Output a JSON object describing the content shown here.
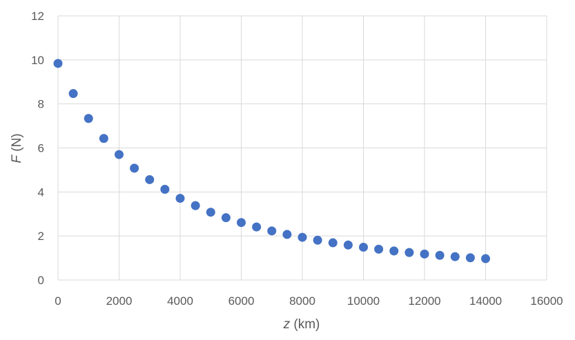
{
  "chart_data": {
    "type": "scatter",
    "title": "",
    "xlabel_var": "z",
    "xlabel_unit": " (km)",
    "ylabel_var": "F",
    "ylabel_unit": " (N)",
    "xlim": [
      0,
      16000
    ],
    "ylim": [
      0,
      12
    ],
    "xticks": [
      "0",
      "2000",
      "4000",
      "6000",
      "8000",
      "10000",
      "12000",
      "14000",
      "16000"
    ],
    "yticks": [
      "0",
      "2",
      "4",
      "6",
      "8",
      "10",
      "12"
    ],
    "grid": true,
    "legend": "none",
    "marker_color": "#4472c4",
    "series": [
      {
        "x": [
          0,
          500,
          1000,
          1500,
          2000,
          2500,
          3000,
          3500,
          4000,
          4500,
          5000,
          5500,
          6000,
          6500,
          7000,
          7500,
          8000,
          8500,
          9000,
          9500,
          10000,
          10500,
          11000,
          11500,
          12000,
          12500,
          13000,
          13500,
          14000
        ],
        "y": [
          9.84,
          8.47,
          7.34,
          6.43,
          5.7,
          5.08,
          4.56,
          4.12,
          3.71,
          3.38,
          3.08,
          2.83,
          2.61,
          2.41,
          2.23,
          2.07,
          1.94,
          1.81,
          1.69,
          1.59,
          1.49,
          1.4,
          1.32,
          1.25,
          1.18,
          1.12,
          1.06,
          1.01,
          0.97
        ]
      }
    ]
  }
}
